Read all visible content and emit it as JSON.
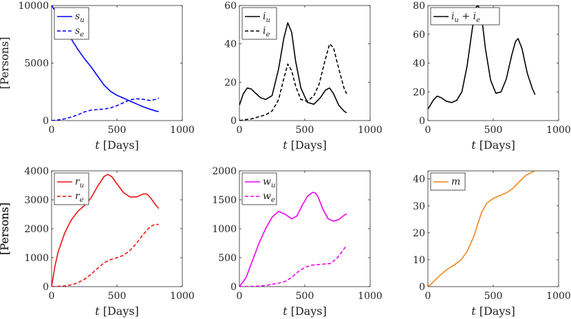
{
  "figure": {
    "xlabel_var": "t",
    "xlabel_unit": "[Days]",
    "ylabel": "[Persons]"
  },
  "chart_data": [
    {
      "type": "line",
      "xlim": [
        0,
        1000
      ],
      "ylim": [
        0,
        10000
      ],
      "xticks": [
        0,
        500,
        1000
      ],
      "yticks": [
        0,
        5000,
        10000
      ],
      "xlabel": "t [Days]",
      "ylabel": "[Persons]",
      "legend_position": "top-left",
      "series": [
        {
          "base": "s",
          "sub": "u",
          "color": "#0000ff",
          "dash": "solid",
          "x": [
            0,
            50,
            100,
            150,
            200,
            250,
            300,
            350,
            400,
            450,
            500,
            550,
            600,
            650,
            700,
            750,
            800,
            820
          ],
          "y": [
            10000,
            9150,
            8200,
            7100,
            6200,
            5400,
            4700,
            3900,
            3100,
            2550,
            2200,
            1950,
            1700,
            1450,
            1200,
            1000,
            820,
            780
          ]
        },
        {
          "base": "s",
          "sub": "e",
          "color": "#0000ff",
          "dash": "dashed",
          "x": [
            0,
            50,
            100,
            150,
            200,
            250,
            300,
            350,
            400,
            450,
            500,
            550,
            600,
            650,
            700,
            750,
            800,
            820
          ],
          "y": [
            0,
            50,
            150,
            300,
            500,
            750,
            900,
            960,
            1000,
            1100,
            1300,
            1550,
            1800,
            1900,
            1850,
            1750,
            1850,
            1950
          ]
        }
      ]
    },
    {
      "type": "line",
      "xlim": [
        0,
        1000
      ],
      "ylim": [
        0,
        60
      ],
      "xticks": [
        0,
        500,
        1000
      ],
      "yticks": [
        0,
        20,
        40,
        60
      ],
      "xlabel": "t [Days]",
      "ylabel": "",
      "legend_position": "top-left",
      "series": [
        {
          "base": "i",
          "sub": "u",
          "color": "#000000",
          "dash": "solid",
          "x": [
            0,
            30,
            60,
            90,
            120,
            160,
            200,
            250,
            300,
            340,
            370,
            400,
            430,
            470,
            520,
            570,
            620,
            660,
            690,
            720,
            760,
            800,
            820
          ],
          "y": [
            8,
            14,
            17,
            16.5,
            14.5,
            12,
            11,
            13,
            27,
            43,
            51,
            46,
            31,
            17,
            9.5,
            8.5,
            12,
            16,
            17,
            14,
            8,
            5,
            4
          ]
        },
        {
          "base": "i",
          "sub": "e",
          "color": "#000000",
          "dash": "dashed",
          "x": [
            0,
            50,
            100,
            150,
            200,
            250,
            300,
            340,
            370,
            400,
            430,
            470,
            520,
            570,
            610,
            650,
            690,
            720,
            760,
            800,
            820
          ],
          "y": [
            0,
            0.5,
            1,
            2,
            3,
            5,
            11,
            22,
            29.5,
            26,
            18,
            11,
            10,
            13,
            19,
            30,
            40,
            38,
            27,
            17,
            14
          ]
        }
      ]
    },
    {
      "type": "line",
      "xlim": [
        0,
        1000
      ],
      "ylim": [
        0,
        80
      ],
      "xticks": [
        0,
        500,
        1000
      ],
      "yticks": [
        0,
        20,
        40,
        60,
        80
      ],
      "xlabel": "t [Days]",
      "ylabel": "",
      "legend_position": "top-left",
      "series": [
        {
          "base": "i",
          "sub": "u",
          "extra_base": "i",
          "extra_sub": "e",
          "color": "#000000",
          "dash": "solid",
          "x": [
            0,
            40,
            70,
            100,
            140,
            180,
            220,
            260,
            300,
            340,
            370,
            385,
            410,
            440,
            480,
            520,
            560,
            600,
            640,
            670,
            690,
            720,
            760,
            800,
            820
          ],
          "y": [
            8,
            14,
            17,
            16,
            13.5,
            12.5,
            14,
            20,
            38,
            64,
            79,
            80,
            73,
            50,
            28,
            19,
            20,
            29,
            45,
            55,
            57,
            50,
            33,
            22,
            18
          ]
        }
      ]
    },
    {
      "type": "line",
      "xlim": [
        0,
        1000
      ],
      "ylim": [
        0,
        4000
      ],
      "xticks": [
        0,
        500,
        1000
      ],
      "yticks": [
        0,
        1000,
        2000,
        3000,
        4000
      ],
      "xlabel": "t [Days]",
      "ylabel": "[Persons]",
      "legend_position": "top-left",
      "series": [
        {
          "base": "r",
          "sub": "u",
          "color": "#ee1111",
          "dash": "solid",
          "x": [
            0,
            25,
            50,
            100,
            150,
            200,
            250,
            300,
            350,
            400,
            430,
            460,
            500,
            550,
            600,
            650,
            700,
            730,
            760,
            800,
            820
          ],
          "y": [
            0,
            700,
            1200,
            1850,
            2300,
            2600,
            2800,
            3050,
            3450,
            3800,
            3880,
            3800,
            3550,
            3250,
            3100,
            3100,
            3200,
            3200,
            3050,
            2800,
            2700
          ]
        },
        {
          "base": "r",
          "sub": "e",
          "color": "#ee1111",
          "dash": "dashed",
          "x": [
            0,
            50,
            100,
            150,
            200,
            250,
            300,
            350,
            400,
            450,
            500,
            550,
            600,
            650,
            700,
            750,
            780,
            800,
            820
          ],
          "y": [
            0,
            10,
            25,
            60,
            130,
            250,
            420,
            620,
            820,
            930,
            1000,
            1080,
            1250,
            1500,
            1800,
            2050,
            2130,
            2150,
            2150
          ]
        }
      ]
    },
    {
      "type": "line",
      "xlim": [
        0,
        1000
      ],
      "ylim": [
        0,
        2000
      ],
      "xticks": [
        0,
        500,
        1000
      ],
      "yticks": [
        0,
        500,
        1000,
        1500,
        2000
      ],
      "xlabel": "t [Days]",
      "ylabel": "[Persons]",
      "legend_position": "top-left",
      "series": [
        {
          "base": "w",
          "sub": "u",
          "color": "#ee00ee",
          "dash": "solid",
          "x": [
            0,
            50,
            100,
            150,
            200,
            250,
            300,
            350,
            400,
            440,
            480,
            520,
            560,
            580,
            600,
            640,
            680,
            720,
            760,
            800,
            820
          ],
          "y": [
            0,
            150,
            450,
            750,
            1000,
            1200,
            1300,
            1250,
            1170,
            1220,
            1400,
            1560,
            1630,
            1620,
            1560,
            1330,
            1170,
            1130,
            1160,
            1230,
            1260
          ]
        },
        {
          "base": "w",
          "sub": "e",
          "color": "#ee00ee",
          "dash": "dashed",
          "x": [
            0,
            50,
            100,
            150,
            200,
            250,
            300,
            350,
            400,
            450,
            500,
            550,
            600,
            650,
            700,
            750,
            800,
            820
          ],
          "y": [
            0,
            2,
            5,
            10,
            20,
            40,
            60,
            90,
            160,
            260,
            330,
            370,
            380,
            390,
            400,
            500,
            650,
            710
          ]
        }
      ]
    },
    {
      "type": "line",
      "xlim": [
        0,
        1000
      ],
      "ylim": [
        0,
        43
      ],
      "xticks": [
        0,
        500,
        1000
      ],
      "yticks": [
        0,
        10,
        20,
        30,
        40
      ],
      "xlabel": "t [Days]",
      "ylabel": "[Persons]",
      "legend_position": "top-left",
      "series": [
        {
          "base": "m",
          "sub": "",
          "color": "#f0851a",
          "dash": "solid",
          "x": [
            0,
            25,
            50,
            100,
            150,
            200,
            250,
            300,
            350,
            380,
            410,
            450,
            500,
            550,
            600,
            650,
            700,
            750,
            800,
            820
          ],
          "y": [
            0,
            1,
            2.2,
            4.5,
            6.5,
            8,
            9.8,
            13,
            18.5,
            23,
            27.5,
            31,
            32.8,
            33.8,
            34.8,
            36.5,
            39,
            41.3,
            42.6,
            43
          ]
        }
      ]
    }
  ]
}
